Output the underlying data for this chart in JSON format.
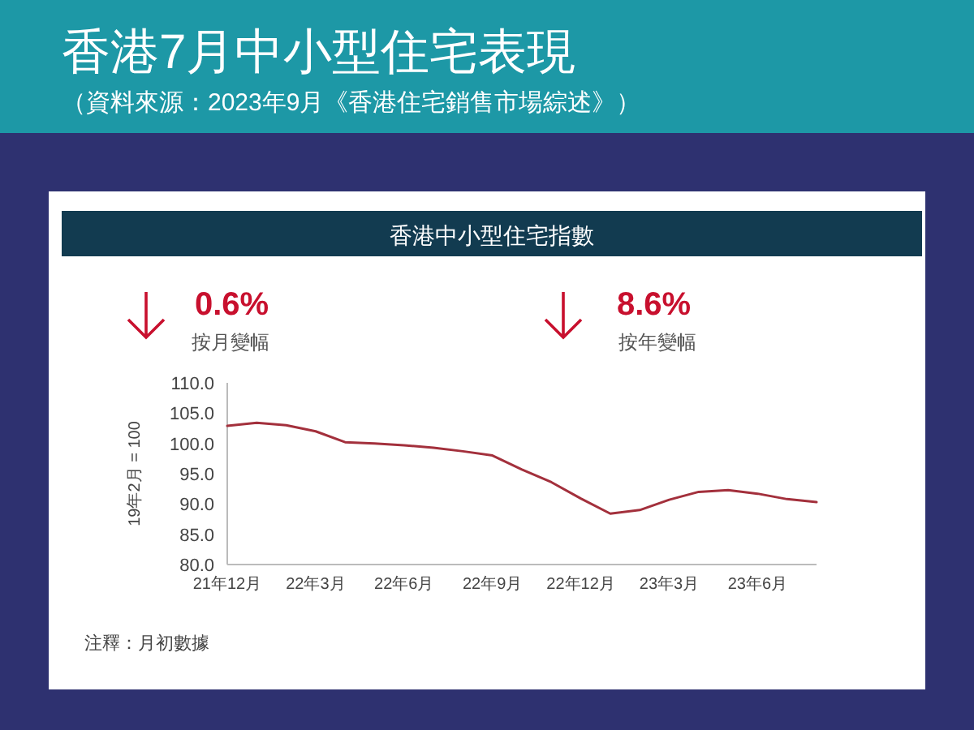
{
  "chart_data": {
    "type": "line",
    "title": "香港7月中小型住宅表現",
    "subtitle": "（資料來源：2023年9月《香港住宅銷售市場綜述》）",
    "annotations": [
      "香港中小型住宅指數",
      "0.6%",
      "按月變幅",
      "8.6%",
      "按年變幅",
      "注釋：月初數據"
    ],
    "ylabel": "19年2月 = 100",
    "categories": [
      "21年12月",
      null,
      null,
      "22年3月",
      null,
      null,
      "22年6月",
      null,
      null,
      "22年9月",
      null,
      null,
      "22年12月",
      null,
      null,
      "23年3月",
      null,
      null,
      "23年6月",
      null,
      null
    ],
    "series": [
      {
        "color": "#a3303c",
        "values": [
          102.9,
          103.4,
          103.0,
          102.0,
          100.2,
          100.0,
          99.7,
          99.3,
          98.7,
          98.0,
          95.7,
          93.6,
          90.9,
          88.4,
          89.0,
          90.7,
          92.0,
          92.3,
          91.7,
          90.8,
          90.3
        ]
      }
    ],
    "ylim": [
      80,
      110
    ],
    "yticks": [
      {
        "value": 80,
        "label": "80.0"
      },
      {
        "value": 85,
        "label": "85.0"
      },
      {
        "value": 90,
        "label": "90.0"
      },
      {
        "value": 95,
        "label": "95.0"
      },
      {
        "value": 100,
        "label": "100.0"
      },
      {
        "value": 105,
        "label": "105.0"
      },
      {
        "value": 110,
        "label": "110.0"
      }
    ],
    "grid": false,
    "marker": "none",
    "line_style": "solid"
  }
}
